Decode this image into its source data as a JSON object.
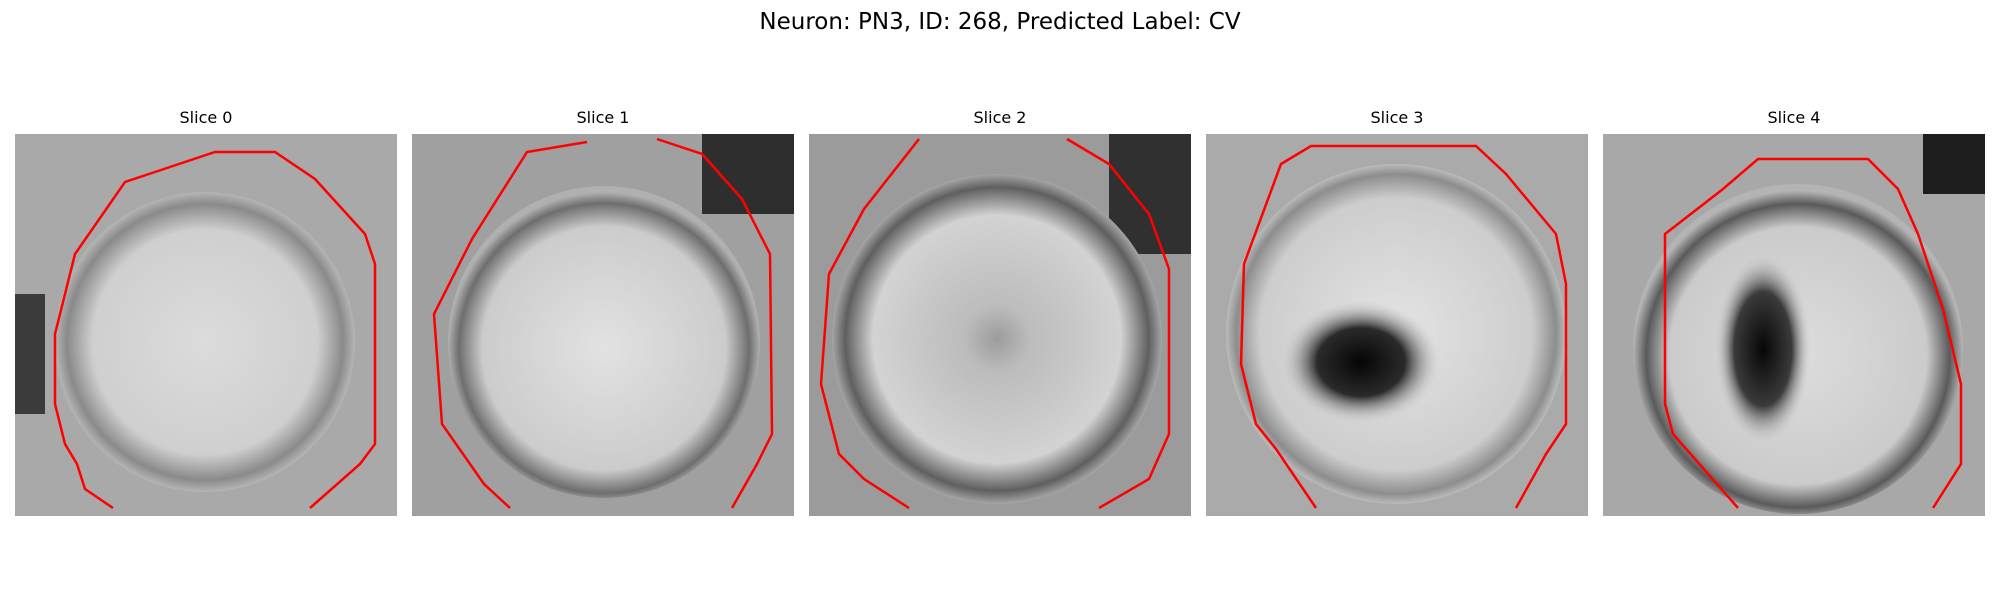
{
  "figure": {
    "title": "Neuron: PN3, ID: 268, Predicted Label: CV"
  },
  "colors": {
    "contour": "#ff0000",
    "background": "#ffffff",
    "image_colormap": "grayscale"
  },
  "panels": [
    {
      "title": "Slice 0",
      "dark_blob": "none",
      "image_content": "grayscale microscopy patch of a round cell body with a red outline contour"
    },
    {
      "title": "Slice 1",
      "dark_blob": "none",
      "image_content": "grayscale microscopy patch of a round cell body with a red outline contour"
    },
    {
      "title": "Slice 2",
      "dark_blob": "faint",
      "image_content": "grayscale microscopy patch of a round cell body with a red outline contour"
    },
    {
      "title": "Slice 3",
      "dark_blob": "strong",
      "image_content": "grayscale microscopy patch of a round cell body with a red outline contour"
    },
    {
      "title": "Slice 4",
      "dark_blob": "strong",
      "image_content": "grayscale microscopy patch of a round cell body with a red outline contour"
    }
  ]
}
